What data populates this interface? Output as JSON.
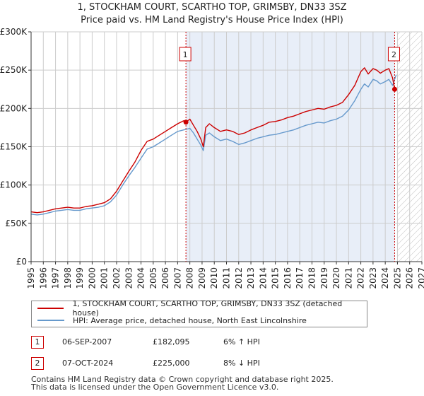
{
  "title_line1": "1, STOCKHAM COURT, SCARTHO TOP, GRIMSBY, DN33 3SZ",
  "title_line2": "Price paid vs. HM Land Registry's House Price Index (HPI)",
  "colors": {
    "property_line": "#cc0000",
    "hpi_line": "#6699cc",
    "shade": "#e8eef8",
    "grid": "#cccccc",
    "marker": "#cc0000"
  },
  "chart_data": {
    "type": "line",
    "title": "Price paid vs. HM Land Registry's House Price Index (HPI)",
    "xlim": [
      1995,
      2027
    ],
    "ylim": [
      0,
      300000
    ],
    "x_ticks": [
      "1995",
      "1996",
      "1997",
      "1998",
      "1999",
      "2000",
      "2001",
      "2002",
      "2003",
      "2004",
      "2005",
      "2006",
      "2007",
      "2008",
      "2009",
      "2010",
      "2011",
      "2012",
      "2013",
      "2014",
      "2015",
      "2016",
      "2017",
      "2018",
      "2019",
      "2020",
      "2021",
      "2022",
      "2023",
      "2024",
      "2025",
      "2026",
      "2027"
    ],
    "y_ticks": [
      {
        "value": 0,
        "label": "£0"
      },
      {
        "value": 50000,
        "label": "£50K"
      },
      {
        "value": 100000,
        "label": "£100K"
      },
      {
        "value": 150000,
        "label": "£150K"
      },
      {
        "value": 200000,
        "label": "£200K"
      },
      {
        "value": 250000,
        "label": "£250K"
      },
      {
        "value": 300000,
        "label": "£300K"
      }
    ],
    "shaded_period": [
      2007.68,
      2024.77
    ],
    "hatched_future_from": 2025.0,
    "series": [
      {
        "name": "1, STOCKHAM COURT, SCARTHO TOP, GRIMSBY, DN33 3SZ (detached house)",
        "x": [
          1995.0,
          1995.5,
          1996.0,
          1996.5,
          1997.0,
          1997.5,
          1998.0,
          1998.5,
          1999.0,
          1999.5,
          2000.0,
          2000.5,
          2001.0,
          2001.5,
          2002.0,
          2002.5,
          2003.0,
          2003.5,
          2004.0,
          2004.5,
          2005.0,
          2005.5,
          2006.0,
          2006.5,
          2007.0,
          2007.5,
          2007.68,
          2008.0,
          2008.3,
          2008.6,
          2008.9,
          2009.1,
          2009.3,
          2009.6,
          2010.0,
          2010.5,
          2011.0,
          2011.5,
          2012.0,
          2012.5,
          2013.0,
          2013.5,
          2014.0,
          2014.5,
          2015.0,
          2015.5,
          2016.0,
          2016.5,
          2017.0,
          2017.5,
          2018.0,
          2018.5,
          2019.0,
          2019.5,
          2020.0,
          2020.5,
          2021.0,
          2021.5,
          2022.0,
          2022.3,
          2022.6,
          2023.0,
          2023.3,
          2023.6,
          2024.0,
          2024.3,
          2024.6,
          2024.77
        ],
        "values": [
          65000,
          64000,
          65000,
          67000,
          69000,
          70000,
          71000,
          70000,
          70000,
          72000,
          73000,
          75000,
          77000,
          82000,
          92000,
          105000,
          118000,
          130000,
          145000,
          157000,
          160000,
          165000,
          170000,
          175000,
          180000,
          184000,
          182095,
          186000,
          178000,
          170000,
          160000,
          150000,
          175000,
          180000,
          175000,
          170000,
          172000,
          170000,
          166000,
          168000,
          172000,
          175000,
          178000,
          182000,
          183000,
          185000,
          188000,
          190000,
          193000,
          196000,
          198000,
          200000,
          199000,
          202000,
          204000,
          208000,
          218000,
          230000,
          248000,
          253000,
          245000,
          252000,
          250000,
          246000,
          250000,
          252000,
          240000,
          225000
        ]
      },
      {
        "name": "HPI: Average price, detached house, North East Lincolnshire",
        "x": [
          1995.0,
          1995.5,
          1996.0,
          1996.5,
          1997.0,
          1997.5,
          1998.0,
          1998.5,
          1999.0,
          1999.5,
          2000.0,
          2000.5,
          2001.0,
          2001.5,
          2002.0,
          2002.5,
          2003.0,
          2003.5,
          2004.0,
          2004.5,
          2005.0,
          2005.5,
          2006.0,
          2006.5,
          2007.0,
          2007.5,
          2008.0,
          2008.3,
          2008.6,
          2008.9,
          2009.1,
          2009.3,
          2009.6,
          2010.0,
          2010.5,
          2011.0,
          2011.5,
          2012.0,
          2012.5,
          2013.0,
          2013.5,
          2014.0,
          2014.5,
          2015.0,
          2015.5,
          2016.0,
          2016.5,
          2017.0,
          2017.5,
          2018.0,
          2018.5,
          2019.0,
          2019.5,
          2020.0,
          2020.5,
          2021.0,
          2021.5,
          2022.0,
          2022.3,
          2022.6,
          2023.0,
          2023.3,
          2023.6,
          2024.0,
          2024.3,
          2024.6,
          2024.9
        ],
        "values": [
          62000,
          61000,
          62000,
          64000,
          66000,
          67000,
          68000,
          67000,
          67000,
          69000,
          70000,
          71000,
          73000,
          78000,
          87000,
          100000,
          112000,
          123000,
          135000,
          147000,
          150000,
          155000,
          160000,
          165000,
          170000,
          172000,
          174000,
          168000,
          160000,
          152000,
          145000,
          165000,
          168000,
          163000,
          158000,
          160000,
          157000,
          153000,
          155000,
          158000,
          161000,
          163000,
          165000,
          166000,
          168000,
          170000,
          172000,
          175000,
          178000,
          180000,
          182000,
          181000,
          184000,
          186000,
          190000,
          198000,
          210000,
          225000,
          232000,
          228000,
          238000,
          236000,
          232000,
          235000,
          238000,
          230000,
          244000
        ]
      }
    ],
    "markers": [
      {
        "label": "1",
        "x": 2007.68,
        "value": 182095
      },
      {
        "label": "2",
        "x": 2024.77,
        "value": 225000
      }
    ]
  },
  "legend": {
    "property": "1, STOCKHAM COURT, SCARTHO TOP, GRIMSBY, DN33 3SZ (detached house)",
    "hpi": "HPI: Average price, detached house, North East Lincolnshire"
  },
  "transactions": [
    {
      "num": "1",
      "date": "06-SEP-2007",
      "price": "£182,095",
      "hpi": "6% ↑ HPI"
    },
    {
      "num": "2",
      "date": "07-OCT-2024",
      "price": "£225,000",
      "hpi": "8% ↓ HPI"
    }
  ],
  "footer": {
    "line1": "Contains HM Land Registry data © Crown copyright and database right 2025.",
    "line2": "This data is licensed under the Open Government Licence v3.0."
  }
}
